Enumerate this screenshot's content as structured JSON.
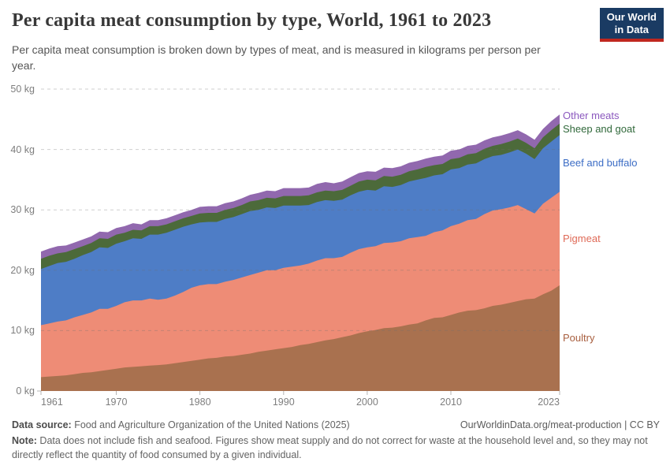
{
  "header": {
    "title": "Per capita meat consumption by type, World, 1961 to 2023",
    "subtitle": "Per capita meat consumption is broken down by types of meat, and is measured in kilograms per person per year."
  },
  "logo": {
    "line1": "Our World",
    "line2": "in Data",
    "bg_color": "#1A3B63",
    "accent_color": "#C0271F"
  },
  "footer": {
    "source_label": "Data source:",
    "source_rest": " Food and Agriculture Organization of the United Nations (2025)",
    "link": "OurWorldinData.org/meat-production | CC BY",
    "note_label": "Note:",
    "note_rest": " Data does not include fish and seafood. Figures show meat supply and do not correct for waste at the household level and, so they may not directly reflect the quantity of food consumed by a given individual."
  },
  "chart_data": {
    "type": "area",
    "stacked": true,
    "title": "Per capita meat consumption by type, World, 1961 to 2023",
    "xlabel": "",
    "ylabel": "",
    "unit": "kg",
    "ylim": [
      0,
      50
    ],
    "grid": true,
    "grid_style": "dashed",
    "legend_position": "right",
    "x": [
      1961,
      1962,
      1963,
      1964,
      1965,
      1966,
      1967,
      1968,
      1969,
      1970,
      1971,
      1972,
      1973,
      1974,
      1975,
      1976,
      1977,
      1978,
      1979,
      1980,
      1981,
      1982,
      1983,
      1984,
      1985,
      1986,
      1987,
      1988,
      1989,
      1990,
      1991,
      1992,
      1993,
      1994,
      1995,
      1996,
      1997,
      1998,
      1999,
      2000,
      2001,
      2002,
      2003,
      2004,
      2005,
      2006,
      2007,
      2008,
      2009,
      2010,
      2011,
      2012,
      2013,
      2014,
      2015,
      2016,
      2017,
      2018,
      2019,
      2020,
      2021,
      2022,
      2023
    ],
    "x_ticks": [
      1961,
      1970,
      1980,
      1990,
      2000,
      2010,
      2023
    ],
    "y_ticks": [
      {
        "value": 0,
        "label": "0 kg"
      },
      {
        "value": 10,
        "label": "10 kg"
      },
      {
        "value": 20,
        "label": "20 kg"
      },
      {
        "value": 30,
        "label": "30 kg"
      },
      {
        "value": 40,
        "label": "40 kg"
      },
      {
        "value": 50,
        "label": "50 kg"
      }
    ],
    "series": [
      {
        "name": "Poultry",
        "color": "#A9714F",
        "label_color": "#A85F3F",
        "values": [
          2.3,
          2.4,
          2.5,
          2.6,
          2.8,
          3.0,
          3.1,
          3.3,
          3.5,
          3.7,
          3.9,
          4.0,
          4.1,
          4.2,
          4.3,
          4.4,
          4.6,
          4.8,
          5.0,
          5.2,
          5.4,
          5.5,
          5.7,
          5.8,
          6.0,
          6.2,
          6.5,
          6.7,
          6.9,
          7.1,
          7.3,
          7.6,
          7.8,
          8.1,
          8.4,
          8.6,
          8.9,
          9.2,
          9.6,
          9.9,
          10.1,
          10.4,
          10.5,
          10.7,
          11.0,
          11.2,
          11.7,
          12.1,
          12.2,
          12.6,
          13.0,
          13.3,
          13.4,
          13.7,
          14.1,
          14.3,
          14.6,
          14.9,
          15.2,
          15.3,
          16.0,
          16.6,
          17.5
        ]
      },
      {
        "name": "Pigmeat",
        "color": "#EE8C76",
        "label_color": "#DF6A57",
        "values": [
          8.6,
          8.8,
          9.0,
          9.1,
          9.4,
          9.6,
          9.9,
          10.3,
          10.1,
          10.4,
          10.8,
          11.0,
          10.9,
          11.1,
          10.8,
          10.9,
          11.2,
          11.6,
          12.1,
          12.3,
          12.3,
          12.2,
          12.4,
          12.6,
          12.8,
          13.0,
          13.1,
          13.3,
          13.1,
          13.3,
          13.3,
          13.2,
          13.3,
          13.5,
          13.6,
          13.4,
          13.3,
          13.7,
          13.9,
          13.9,
          13.9,
          14.1,
          14.1,
          14.1,
          14.3,
          14.3,
          14.0,
          14.2,
          14.4,
          14.7,
          14.7,
          15.0,
          15.1,
          15.6,
          15.8,
          15.8,
          15.8,
          15.9,
          14.9,
          14.1,
          15.0,
          15.4,
          15.5
        ]
      },
      {
        "name": "Beef and buffalo",
        "color": "#4E7DC6",
        "label_color": "#3C6DC5",
        "values": [
          9.3,
          9.5,
          9.7,
          9.7,
          9.7,
          9.9,
          10.0,
          10.2,
          10.1,
          10.3,
          10.1,
          10.3,
          10.2,
          10.6,
          10.8,
          10.9,
          10.9,
          10.8,
          10.5,
          10.4,
          10.3,
          10.3,
          10.4,
          10.4,
          10.5,
          10.6,
          10.4,
          10.4,
          10.3,
          10.3,
          10.1,
          9.9,
          9.7,
          9.7,
          9.6,
          9.5,
          9.5,
          9.5,
          9.5,
          9.5,
          9.2,
          9.4,
          9.2,
          9.3,
          9.4,
          9.5,
          9.6,
          9.4,
          9.3,
          9.4,
          9.2,
          9.2,
          9.2,
          9.1,
          9.0,
          9.0,
          9.1,
          9.2,
          9.2,
          9.0,
          9.2,
          9.3,
          9.4
        ]
      },
      {
        "name": "Sheep and goat",
        "color": "#4C6A3A",
        "label_color": "#31693B",
        "values": [
          1.7,
          1.7,
          1.6,
          1.6,
          1.6,
          1.5,
          1.5,
          1.5,
          1.5,
          1.5,
          1.4,
          1.4,
          1.4,
          1.4,
          1.4,
          1.4,
          1.4,
          1.4,
          1.4,
          1.5,
          1.5,
          1.5,
          1.5,
          1.5,
          1.5,
          1.6,
          1.6,
          1.6,
          1.6,
          1.6,
          1.6,
          1.6,
          1.6,
          1.6,
          1.6,
          1.6,
          1.6,
          1.6,
          1.7,
          1.7,
          1.7,
          1.7,
          1.7,
          1.7,
          1.7,
          1.7,
          1.8,
          1.7,
          1.7,
          1.7,
          1.7,
          1.7,
          1.7,
          1.7,
          1.7,
          1.8,
          1.8,
          1.8,
          1.8,
          1.8,
          1.8,
          1.9,
          1.9
        ]
      },
      {
        "name": "Other meats",
        "color": "#9168AE",
        "label_color": "#8B58BE",
        "values": [
          1.2,
          1.2,
          1.2,
          1.1,
          1.1,
          1.1,
          1.1,
          1.1,
          1.1,
          1.1,
          1.1,
          1.1,
          1.0,
          1.0,
          1.0,
          1.0,
          1.0,
          1.0,
          1.0,
          1.1,
          1.1,
          1.1,
          1.1,
          1.1,
          1.1,
          1.1,
          1.2,
          1.2,
          1.2,
          1.3,
          1.3,
          1.3,
          1.3,
          1.4,
          1.4,
          1.3,
          1.4,
          1.4,
          1.4,
          1.4,
          1.4,
          1.4,
          1.4,
          1.4,
          1.4,
          1.4,
          1.4,
          1.4,
          1.4,
          1.4,
          1.4,
          1.4,
          1.4,
          1.4,
          1.4,
          1.4,
          1.4,
          1.4,
          1.4,
          1.4,
          1.4,
          1.5,
          1.5
        ]
      }
    ]
  }
}
